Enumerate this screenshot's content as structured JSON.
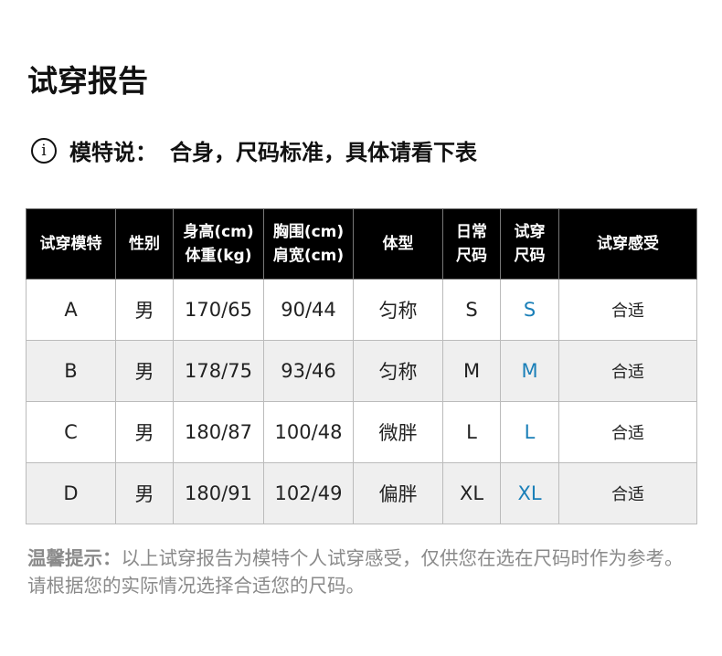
{
  "title": "试穿报告",
  "note": {
    "label": "模特说：",
    "text": "合身，尺码标准，具体请看下表"
  },
  "table": {
    "headers": [
      [
        "试穿模特"
      ],
      [
        "性别"
      ],
      [
        "身高(cm)",
        "体重(kg)"
      ],
      [
        "胸围(cm)",
        "肩宽(cm)"
      ],
      [
        "体型"
      ],
      [
        "日常",
        "尺码"
      ],
      [
        "试穿",
        "尺码"
      ],
      [
        "试穿感受"
      ]
    ],
    "rows": [
      [
        "A",
        "男",
        "170/65",
        "90/44",
        "匀称",
        "S",
        "S",
        "合适"
      ],
      [
        "B",
        "男",
        "178/75",
        "93/46",
        "匀称",
        "M",
        "M",
        "合适"
      ],
      [
        "C",
        "男",
        "180/87",
        "100/48",
        "微胖",
        "L",
        "L",
        "合适"
      ],
      [
        "D",
        "男",
        "180/91",
        "102/49",
        "偏胖",
        "XL",
        "XL",
        "合适"
      ]
    ]
  },
  "tip": {
    "label": "温馨提示：",
    "text": "以上试穿报告为模特个人试穿感受，仅供您在选在尺码时作为参考。请根据您的实际情况选择合适您的尺码。"
  },
  "colors": {
    "header_bg": "#000000",
    "alt_row": "#efefef",
    "trial_size": "#1a7fb8"
  }
}
